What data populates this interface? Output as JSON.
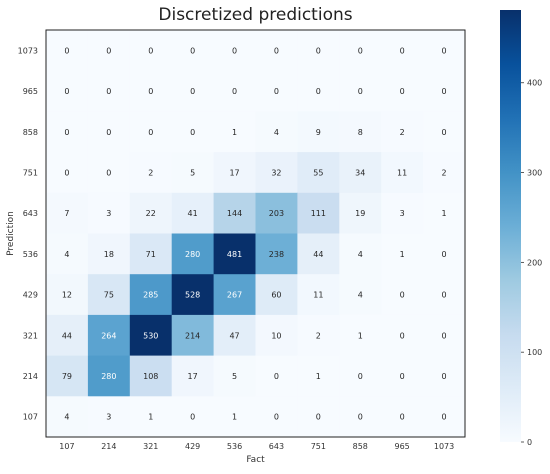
{
  "chart_data": {
    "type": "heatmap",
    "title": "Discretized predictions",
    "xlabel": "Fact",
    "ylabel": "Prediction",
    "x_categories": [
      "107",
      "214",
      "321",
      "429",
      "536",
      "643",
      "751",
      "858",
      "965",
      "1073"
    ],
    "y_categories": [
      "1073",
      "965",
      "858",
      "751",
      "643",
      "536",
      "429",
      "321",
      "214",
      "107"
    ],
    "values": [
      [
        0,
        0,
        0,
        0,
        0,
        0,
        0,
        0,
        0,
        0
      ],
      [
        0,
        0,
        0,
        0,
        0,
        0,
        0,
        0,
        0,
        0
      ],
      [
        0,
        0,
        0,
        0,
        1,
        4,
        9,
        8,
        2,
        0
      ],
      [
        0,
        0,
        2,
        5,
        17,
        32,
        55,
        34,
        11,
        2
      ],
      [
        7,
        3,
        22,
        41,
        144,
        203,
        111,
        19,
        3,
        1
      ],
      [
        4,
        18,
        71,
        280,
        481,
        238,
        44,
        4,
        1,
        0
      ],
      [
        12,
        75,
        285,
        528,
        267,
        60,
        11,
        4,
        0,
        0
      ],
      [
        44,
        264,
        530,
        214,
        47,
        10,
        2,
        1,
        0,
        0
      ],
      [
        79,
        280,
        108,
        17,
        5,
        0,
        1,
        0,
        0,
        0
      ],
      [
        4,
        3,
        1,
        0,
        1,
        0,
        0,
        0,
        0,
        0
      ]
    ],
    "colorscale": "Blues",
    "vmin": 0,
    "vmax": 481,
    "colorbar_ticks": [
      "0",
      "100",
      "200",
      "300",
      "400"
    ],
    "colorbar_tick_values": [
      0,
      100,
      200,
      300,
      400
    ],
    "grid": false
  }
}
